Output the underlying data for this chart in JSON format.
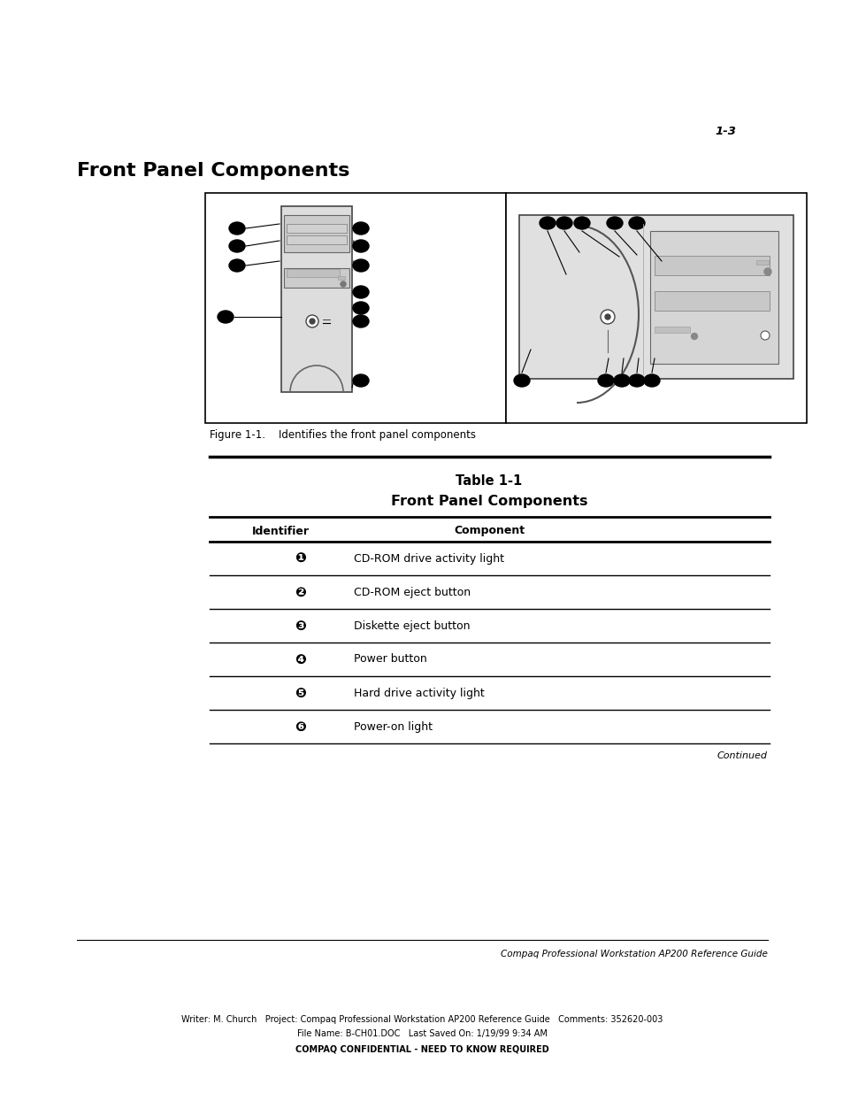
{
  "page_number": "1-3",
  "title": "Front Panel Components",
  "figure_caption": "Figure 1-1.    Identifies the front panel components",
  "table_title_line1": "Table 1-1",
  "table_title_line2": "Front Panel Components",
  "col_header_1": "Identifier",
  "col_header_2": "Component",
  "rows": [
    [
      "❶",
      "CD-ROM drive activity light"
    ],
    [
      "❷",
      "CD-ROM eject button"
    ],
    [
      "❸",
      "Diskette eject button"
    ],
    [
      "❹",
      "Power button"
    ],
    [
      "❺",
      "Hard drive activity light"
    ],
    [
      "❻",
      "Power-on light"
    ]
  ],
  "continued_text": "Continued",
  "footer_line1": "Compaq Professional Workstation AP200 Reference Guide",
  "footer_line2": "Writer: M. Church   Project: Compaq Professional Workstation AP200 Reference Guide   Comments: 352620-003",
  "footer_line3": "File Name: B-CH01.DOC   Last Saved On: 1/19/99 9:34 AM",
  "footer_line4": "COMPAQ CONFIDENTIAL - NEED TO KNOW REQUIRED",
  "bg_color": "#ffffff",
  "text_color": "#000000"
}
